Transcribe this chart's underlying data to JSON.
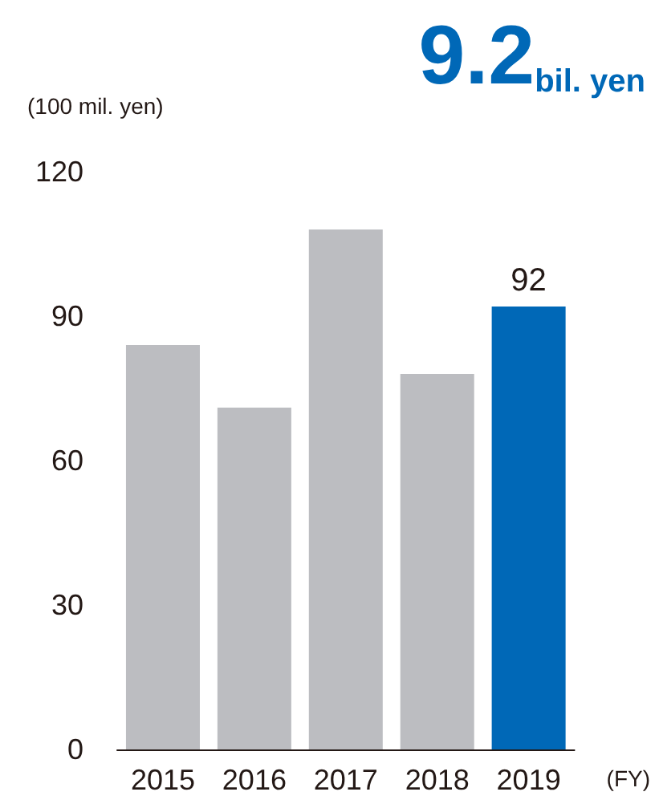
{
  "chart_data": {
    "type": "bar",
    "title": "9.2bil. yen",
    "ylabel": "(100 mil. yen)",
    "xlabel": "(FY)",
    "categories": [
      "2015",
      "2016",
      "2017",
      "2018",
      "2019"
    ],
    "values": [
      84,
      71,
      108,
      78,
      92
    ],
    "colors": [
      "#bcbdc1",
      "#bcbdc1",
      "#bcbdc1",
      "#bcbdc1",
      "#0068b7"
    ],
    "value_labels": [
      null,
      null,
      null,
      null,
      "92"
    ],
    "ylim": [
      0,
      120
    ],
    "yticks": [
      0,
      30,
      60,
      90,
      120
    ]
  }
}
